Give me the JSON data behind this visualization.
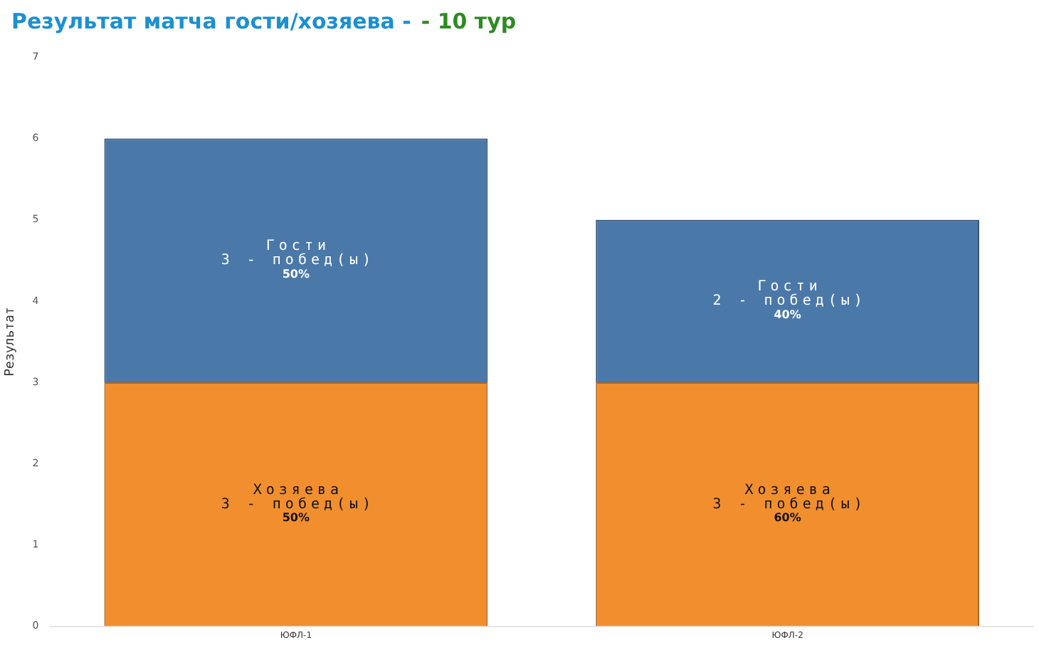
{
  "chart_data": {
    "type": "bar",
    "title": "Результат матча гости/хозяева -",
    "subtitle": "- 10 тур",
    "ylabel": "Результат",
    "categories": [
      "ЮФЛ-1",
      "ЮФЛ-2"
    ],
    "series": [
      {
        "name": "Хозяева",
        "color": "#f18f2e",
        "values": [
          3,
          3
        ],
        "value_labels": [
          "3 - побед(ы)\n50%",
          "3 - побед(ы)\n60%"
        ]
      },
      {
        "name": "Гости",
        "color": "#4a78a8",
        "values": [
          3,
          2
        ],
        "value_labels": [
          "3 - побед(ы)\n50%",
          "2 - побед(ы)\n40%"
        ]
      }
    ],
    "stacked": true,
    "ylim": [
      0,
      7
    ],
    "yticks": [
      0,
      1,
      2,
      3,
      4,
      5,
      6,
      7
    ],
    "grid": false,
    "legend": false
  }
}
